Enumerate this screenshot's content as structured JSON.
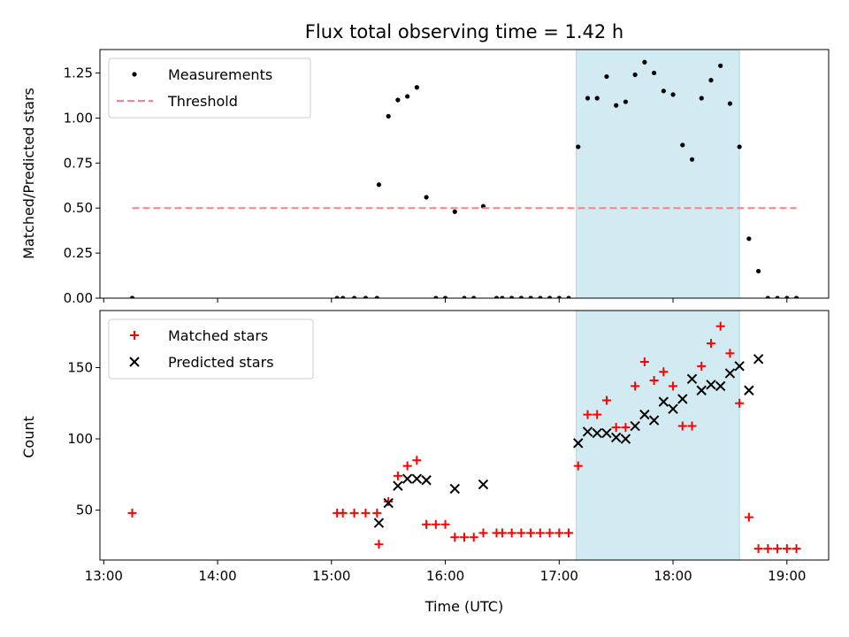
{
  "figure": {
    "title": "Flux total observing time = 1.42 h",
    "xlabel": "Time (UTC)",
    "colors": {
      "measurement": "#000000",
      "threshold": "#ff7f7f",
      "matched": "#ff0000",
      "predicted": "#000000",
      "highlight": "#add8e6"
    }
  },
  "chart_data": [
    {
      "type": "scatter",
      "ylabel": "Matched/Predicted stars",
      "ylim": [
        0,
        1.38
      ],
      "xlim": [
        "12:58",
        "19:22"
      ],
      "yticks": [
        0,
        0.25,
        0.5,
        0.75,
        1.0,
        1.25
      ],
      "ytick_labels": [
        "0.00",
        "0.25",
        "0.50",
        "0.75",
        "1.00",
        "1.25"
      ],
      "legend_position": "upper-left",
      "highlight_span": [
        "17:09",
        "18:35"
      ],
      "series": [
        {
          "name": "Measurements",
          "marker": "dot",
          "points": [
            [
              "13:15",
              0.0
            ],
            [
              "15:03",
              0.0
            ],
            [
              "15:06",
              0.0
            ],
            [
              "15:12",
              0.0
            ],
            [
              "15:18",
              0.0
            ],
            [
              "15:24",
              0.0
            ],
            [
              "15:25",
              0.63
            ],
            [
              "15:30",
              1.01
            ],
            [
              "15:35",
              1.1
            ],
            [
              "15:40",
              1.12
            ],
            [
              "15:45",
              1.17
            ],
            [
              "15:50",
              0.56
            ],
            [
              "15:55",
              0.0
            ],
            [
              "16:00",
              0.0
            ],
            [
              "16:05",
              0.48
            ],
            [
              "16:10",
              0.0
            ],
            [
              "16:15",
              0.0
            ],
            [
              "16:20",
              0.51
            ],
            [
              "16:27",
              0.0
            ],
            [
              "16:30",
              0.0
            ],
            [
              "16:35",
              0.0
            ],
            [
              "16:40",
              0.0
            ],
            [
              "16:45",
              0.0
            ],
            [
              "16:50",
              0.0
            ],
            [
              "16:55",
              0.0
            ],
            [
              "17:00",
              0.0
            ],
            [
              "17:05",
              0.0
            ],
            [
              "17:10",
              0.84
            ],
            [
              "17:15",
              1.11
            ],
            [
              "17:20",
              1.11
            ],
            [
              "17:25",
              1.23
            ],
            [
              "17:30",
              1.07
            ],
            [
              "17:35",
              1.09
            ],
            [
              "17:40",
              1.24
            ],
            [
              "17:45",
              1.31
            ],
            [
              "17:50",
              1.25
            ],
            [
              "17:55",
              1.15
            ],
            [
              "18:00",
              1.13
            ],
            [
              "18:05",
              0.85
            ],
            [
              "18:10",
              0.77
            ],
            [
              "18:15",
              1.11
            ],
            [
              "18:20",
              1.21
            ],
            [
              "18:25",
              1.29
            ],
            [
              "18:30",
              1.08
            ],
            [
              "18:35",
              0.84
            ],
            [
              "18:40",
              0.33
            ],
            [
              "18:45",
              0.15
            ],
            [
              "18:50",
              0.0
            ],
            [
              "18:55",
              0.0
            ],
            [
              "19:00",
              0.0
            ],
            [
              "19:05",
              0.0
            ]
          ]
        },
        {
          "name": "Threshold",
          "marker": "dashed-line",
          "points": [
            [
              "13:15",
              0.5
            ],
            [
              "19:05",
              0.5
            ]
          ]
        }
      ]
    },
    {
      "type": "scatter",
      "ylabel": "Count",
      "ylim": [
        15,
        190
      ],
      "xlim": [
        "12:58",
        "19:22"
      ],
      "yticks": [
        50,
        100,
        150
      ],
      "ytick_labels": [
        "50",
        "100",
        "150"
      ],
      "xticks": [
        "13:00",
        "14:00",
        "15:00",
        "16:00",
        "17:00",
        "18:00",
        "19:00"
      ],
      "xtick_labels": [
        "13:00",
        "14:00",
        "15:00",
        "16:00",
        "17:00",
        "18:00",
        "19:00"
      ],
      "legend_position": "upper-left",
      "highlight_span": [
        "17:09",
        "18:35"
      ],
      "series": [
        {
          "name": "Matched stars",
          "marker": "plus",
          "points": [
            [
              "13:15",
              48
            ],
            [
              "15:03",
              48
            ],
            [
              "15:06",
              48
            ],
            [
              "15:12",
              48
            ],
            [
              "15:18",
              48
            ],
            [
              "15:24",
              48
            ],
            [
              "15:25",
              26
            ],
            [
              "15:30",
              56
            ],
            [
              "15:35",
              74
            ],
            [
              "15:40",
              81
            ],
            [
              "15:45",
              85
            ],
            [
              "15:50",
              40
            ],
            [
              "15:55",
              40
            ],
            [
              "16:00",
              40
            ],
            [
              "16:05",
              31
            ],
            [
              "16:10",
              31
            ],
            [
              "16:15",
              31
            ],
            [
              "16:20",
              34
            ],
            [
              "16:27",
              34
            ],
            [
              "16:30",
              34
            ],
            [
              "16:35",
              34
            ],
            [
              "16:40",
              34
            ],
            [
              "16:45",
              34
            ],
            [
              "16:50",
              34
            ],
            [
              "16:55",
              34
            ],
            [
              "17:00",
              34
            ],
            [
              "17:05",
              34
            ],
            [
              "17:10",
              81
            ],
            [
              "17:15",
              117
            ],
            [
              "17:20",
              117
            ],
            [
              "17:25",
              127
            ],
            [
              "17:30",
              108
            ],
            [
              "17:35",
              108
            ],
            [
              "17:40",
              137
            ],
            [
              "17:45",
              154
            ],
            [
              "17:50",
              141
            ],
            [
              "17:55",
              147
            ],
            [
              "18:00",
              137
            ],
            [
              "18:05",
              109
            ],
            [
              "18:10",
              109
            ],
            [
              "18:15",
              151
            ],
            [
              "18:20",
              167
            ],
            [
              "18:25",
              179
            ],
            [
              "18:30",
              160
            ],
            [
              "18:35",
              125
            ],
            [
              "18:40",
              45
            ],
            [
              "18:45",
              23
            ],
            [
              "18:50",
              23
            ],
            [
              "18:55",
              23
            ],
            [
              "19:00",
              23
            ],
            [
              "19:05",
              23
            ]
          ]
        },
        {
          "name": "Predicted stars",
          "marker": "x",
          "points": [
            [
              "15:25",
              41
            ],
            [
              "15:30",
              55
            ],
            [
              "15:35",
              67
            ],
            [
              "15:40",
              72
            ],
            [
              "15:45",
              72
            ],
            [
              "15:50",
              71
            ],
            [
              "16:05",
              65
            ],
            [
              "16:20",
              68
            ],
            [
              "17:10",
              97
            ],
            [
              "17:15",
              105
            ],
            [
              "17:20",
              104
            ],
            [
              "17:25",
              104
            ],
            [
              "17:30",
              101
            ],
            [
              "17:35",
              100
            ],
            [
              "17:40",
              109
            ],
            [
              "17:45",
              117
            ],
            [
              "17:50",
              113
            ],
            [
              "17:55",
              126
            ],
            [
              "18:00",
              121
            ],
            [
              "18:05",
              128
            ],
            [
              "18:10",
              142
            ],
            [
              "18:15",
              134
            ],
            [
              "18:20",
              138
            ],
            [
              "18:25",
              137
            ],
            [
              "18:30",
              146
            ],
            [
              "18:35",
              151
            ],
            [
              "18:40",
              134
            ],
            [
              "18:45",
              156
            ]
          ]
        }
      ]
    }
  ]
}
